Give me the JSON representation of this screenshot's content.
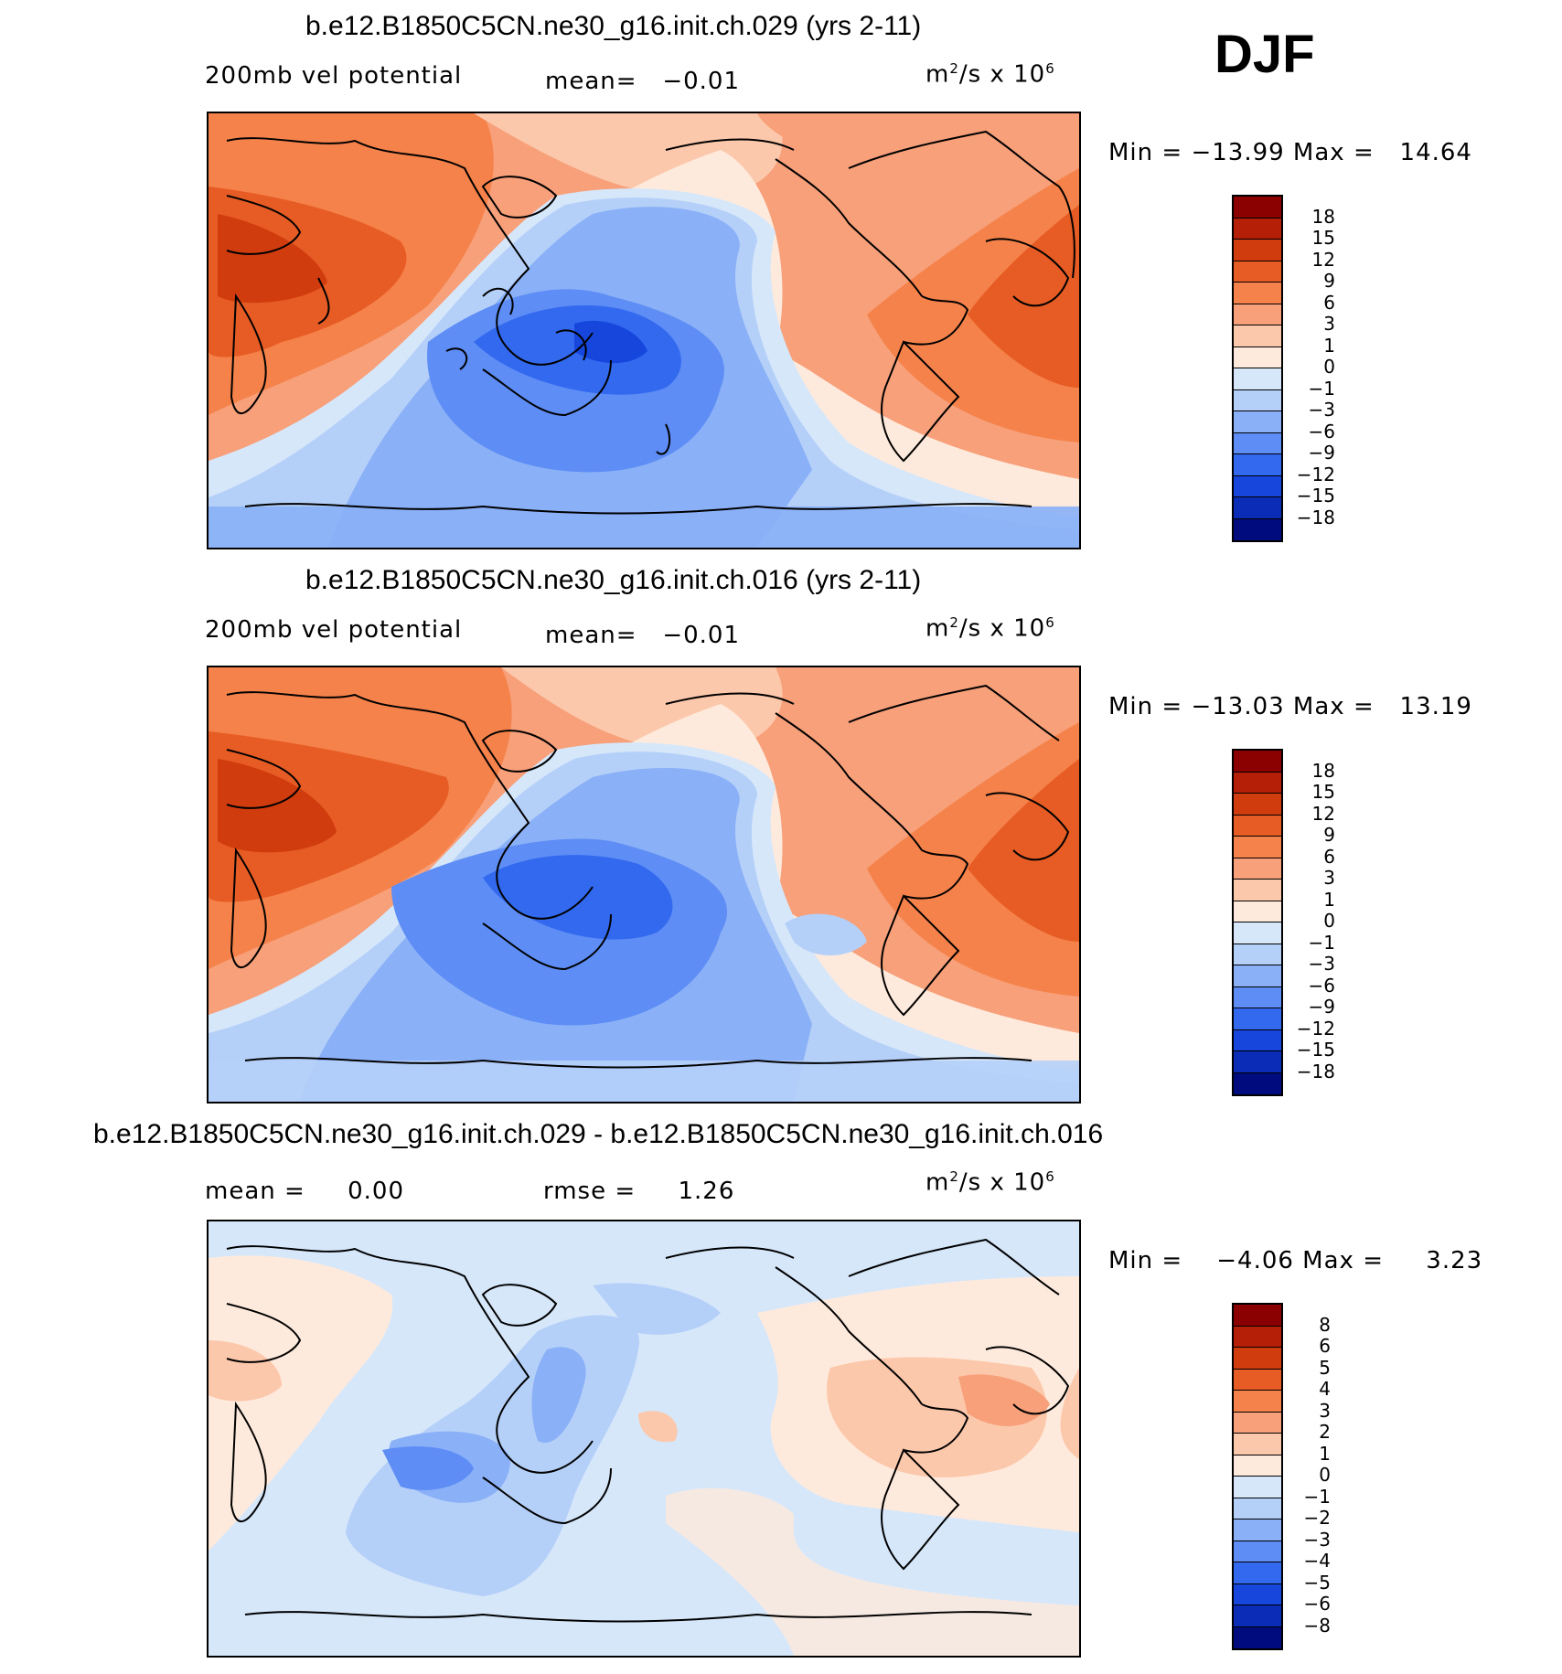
{
  "season": "DJF",
  "panels": [
    {
      "title": "b.e12.B1850C5CN.ne30_g16.init.ch.029 (yrs 2-11)",
      "variable": "200mb vel potential",
      "stat_text": "mean=   −0.01",
      "units_base": "m",
      "units_sup": "2",
      "units_mid": "/s x 10",
      "units_exp": "6",
      "minmax": "Min = −13.99 Max =   14.64",
      "colorbar_labels": [
        "18",
        "15",
        "12",
        "9",
        "6",
        "3",
        "1",
        "0",
        "−1",
        "−3",
        "−6",
        "−9",
        "−12",
        "−15",
        "−18"
      ],
      "colors": [
        "#8b0000",
        "#b51f08",
        "#d13c0f",
        "#e65c24",
        "#f5824a",
        "#f7a07a",
        "#fcc8ab",
        "#feeadc",
        "#d6e7fa",
        "#b5d0f8",
        "#8ab0f7",
        "#5d8df5",
        "#3369ef",
        "#1646dc",
        "#0b2cb6",
        "#000c7d"
      ]
    },
    {
      "title": "b.e12.B1850C5CN.ne30_g16.init.ch.016 (yrs 2-11)",
      "variable": "200mb vel potential",
      "stat_text": "mean=   −0.01",
      "units_base": "m",
      "units_sup": "2",
      "units_mid": "/s x 10",
      "units_exp": "6",
      "minmax": "Min = −13.03 Max =   13.19",
      "colorbar_labels": [
        "18",
        "15",
        "12",
        "9",
        "6",
        "3",
        "1",
        "0",
        "−1",
        "−3",
        "−6",
        "−9",
        "−12",
        "−15",
        "−18"
      ],
      "colors": [
        "#8b0000",
        "#b51f08",
        "#d13c0f",
        "#e65c24",
        "#f5824a",
        "#f7a07a",
        "#fcc8ab",
        "#feeadc",
        "#d6e7fa",
        "#b5d0f8",
        "#8ab0f7",
        "#5d8df5",
        "#3369ef",
        "#1646dc",
        "#0b2cb6",
        "#000c7d"
      ]
    },
    {
      "title": "b.e12.B1850C5CN.ne30_g16.init.ch.029 - b.e12.B1850C5CN.ne30_g16.init.ch.016",
      "variable": "mean =     0.00",
      "stat_text": "rmse =     1.26",
      "units_base": "m",
      "units_sup": "2",
      "units_mid": "/s x 10",
      "units_exp": "6",
      "minmax": "Min =    −4.06 Max =     3.23",
      "colorbar_labels": [
        "8",
        "6",
        "5",
        "4",
        "3",
        "2",
        "1",
        "0",
        "−1",
        "−2",
        "−3",
        "−4",
        "−5",
        "−6",
        "−8"
      ],
      "colors": [
        "#8b0000",
        "#b51f08",
        "#d13c0f",
        "#e65c24",
        "#f5824a",
        "#f7a07a",
        "#fcc8ab",
        "#feeadc",
        "#d6e7fa",
        "#b5d0f8",
        "#8ab0f7",
        "#5d8df5",
        "#3369ef",
        "#1646dc",
        "#0b2cb6",
        "#000c7d"
      ]
    }
  ]
}
